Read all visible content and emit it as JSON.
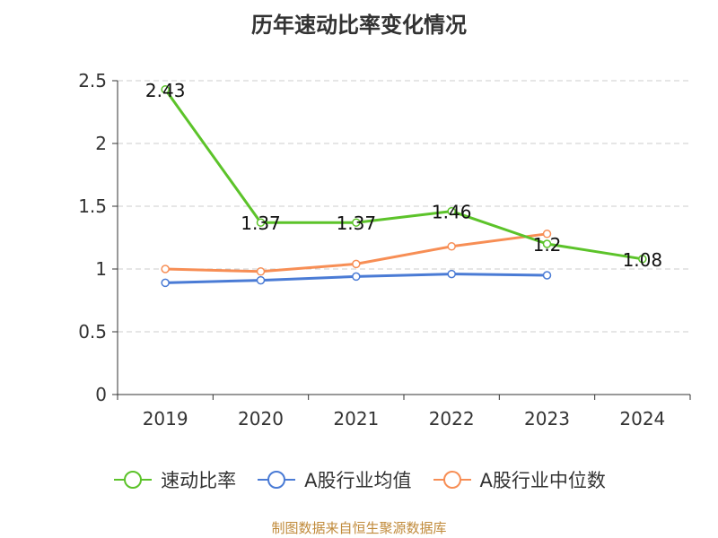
{
  "title": "历年速动比率变化情况",
  "source": "制图数据来自恒生聚源数据库",
  "chart_data": {
    "type": "line",
    "categories": [
      "2019",
      "2020",
      "2021",
      "2022",
      "2023",
      "2024"
    ],
    "ylim": [
      0,
      2.5
    ],
    "yticks": [
      "0",
      "0.5",
      "1",
      "1.5",
      "2",
      "2.5"
    ],
    "grid": true,
    "legend_position": "bottom",
    "series": [
      {
        "name": "速动比率",
        "color": "#5cc32a",
        "values": [
          2.43,
          1.37,
          1.37,
          1.46,
          1.2,
          1.08
        ],
        "labels": [
          "2.43",
          "1.37",
          "1.37",
          "1.46",
          "1.2",
          "1.08"
        ]
      },
      {
        "name": "A股行业均值",
        "color": "#4a7bd5",
        "values": [
          0.89,
          0.91,
          0.94,
          0.96,
          0.95,
          null
        ]
      },
      {
        "name": "A股行业中位数",
        "color": "#f78e55",
        "values": [
          1.0,
          0.98,
          1.04,
          1.18,
          1.28,
          null
        ]
      }
    ]
  }
}
